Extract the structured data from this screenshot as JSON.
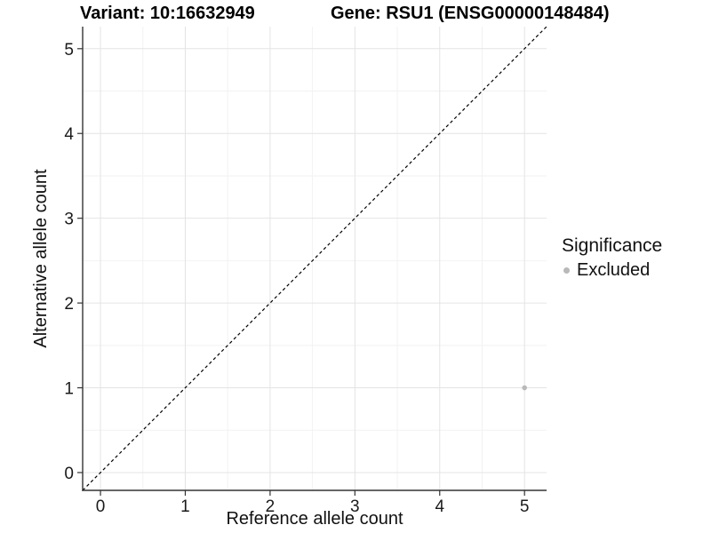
{
  "chart_data": {
    "type": "scatter",
    "title_left": "Variant: 10:16632949",
    "title_right": "Gene: RSU1 (ENSG00000148484)",
    "xlabel": "Reference allele count",
    "ylabel": "Alternative allele count",
    "xlim": [
      -0.21,
      5.26
    ],
    "ylim": [
      -0.21,
      5.26
    ],
    "x_ticks": [
      0,
      1,
      2,
      3,
      4,
      5
    ],
    "y_ticks": [
      0,
      1,
      2,
      3,
      4,
      5
    ],
    "x_minor_ticks": [
      0.5,
      1.5,
      2.5,
      3.5,
      4.5
    ],
    "y_minor_ticks": [
      0.5,
      1.5,
      2.5,
      3.5,
      4.5
    ],
    "grid": true,
    "series": [
      {
        "name": "Excluded",
        "color": "#b9b9b9",
        "marker": "circle",
        "points": [
          {
            "x": 5,
            "y": 1
          }
        ]
      }
    ],
    "reference_line": {
      "type": "identity",
      "style": "dashed",
      "color": "#000000",
      "from": [
        -0.21,
        -0.21
      ],
      "to": [
        5.26,
        5.26
      ]
    },
    "legend": {
      "title": "Significance",
      "position": "right",
      "items": [
        {
          "label": "Excluded",
          "color": "#b9b9b9",
          "marker": "circle"
        }
      ]
    },
    "colors": {
      "background": "#ffffff",
      "grid_major": "#e4e4e4",
      "grid_minor": "#f2f2f2",
      "axis": "#333333",
      "tick_text": "#1a1a1a"
    }
  }
}
